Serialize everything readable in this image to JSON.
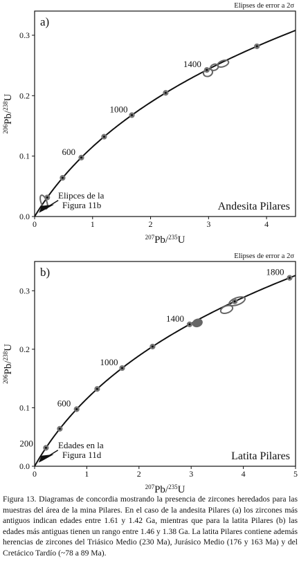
{
  "chart_data": [
    {
      "type": "scatter",
      "panel_label": "a)",
      "note": "Elipses de error a 2σ",
      "sample": "Andesita Pilares",
      "xlabel": {
        "m1": "207",
        "b1": "Pb/",
        "m2": "235",
        "b2": "U"
      },
      "ylabel": {
        "m1": "206",
        "b1": "Pb/",
        "m2": "238",
        "b2": "U"
      },
      "xlim": [
        0,
        4.5
      ],
      "ylim": [
        0,
        0.34
      ],
      "xticks": [
        0,
        1,
        2,
        3,
        4
      ],
      "yticks": [
        0.0,
        0.1,
        0.2,
        0.3
      ],
      "xtick_labels": [
        "0",
        "1",
        "2",
        "3",
        "4"
      ],
      "ytick_labels": [
        "0.0",
        "0.1",
        "0.2",
        "0.3"
      ],
      "concordia_ages_ma": [
        200,
        400,
        600,
        800,
        1000,
        1200,
        1400,
        1600
      ],
      "age_labels": [
        {
          "age": 600,
          "text": "600"
        },
        {
          "age": 1000,
          "text": "1000"
        },
        {
          "age": 1400,
          "text": "1400"
        }
      ],
      "ellipses": [
        {
          "x": 2.99,
          "y": 0.238,
          "rx": 0.08,
          "ry": 0.006,
          "filled": false
        },
        {
          "x": 3.1,
          "y": 0.247,
          "rx": 0.07,
          "ry": 0.005,
          "filled": false
        },
        {
          "x": 3.25,
          "y": 0.253,
          "rx": 0.1,
          "ry": 0.005,
          "filled": false
        }
      ],
      "near_origin_ellipses": [
        {
          "x": 0.16,
          "y": 0.024,
          "rx": 0.05,
          "ry": 0.012,
          "filled": false
        }
      ],
      "annotation": {
        "line1": "Elipces de la",
        "line2": "Figura 11b",
        "x": 0.05,
        "y": 0.005
      }
    },
    {
      "type": "scatter",
      "panel_label": "b)",
      "note": "Elipses de error a 2σ",
      "sample": "Latita Pilares",
      "xlabel": {
        "m1": "207",
        "b1": "Pb/",
        "m2": "235",
        "b2": "U"
      },
      "ylabel": {
        "m1": "206",
        "b1": "Pb/",
        "m2": "238",
        "b2": "U"
      },
      "xlim": [
        0,
        5
      ],
      "ylim": [
        0,
        0.35
      ],
      "xticks": [
        0,
        1,
        2,
        3,
        4,
        5
      ],
      "yticks": [
        0.0,
        0.1,
        0.2,
        0.3
      ],
      "xtick_labels": [
        "0",
        "1",
        "2",
        "3",
        "4",
        "5"
      ],
      "ytick_labels": [
        "0.0",
        "0.1",
        "0.2",
        "0.3"
      ],
      "concordia_ages_ma": [
        200,
        400,
        600,
        800,
        1000,
        1200,
        1400,
        1600,
        1800
      ],
      "age_labels": [
        {
          "age": 200,
          "text": "200"
        },
        {
          "age": 600,
          "text": "600"
        },
        {
          "age": 1000,
          "text": "1000"
        },
        {
          "age": 1400,
          "text": "1400"
        },
        {
          "age": 1800,
          "text": "1800"
        }
      ],
      "ellipses": [
        {
          "x": 3.12,
          "y": 0.245,
          "rx": 0.09,
          "ry": 0.006,
          "filled": true
        },
        {
          "x": 3.68,
          "y": 0.268,
          "rx": 0.12,
          "ry": 0.006,
          "filled": false
        },
        {
          "x": 3.88,
          "y": 0.282,
          "rx": 0.16,
          "ry": 0.006,
          "filled": false
        }
      ],
      "near_origin_ellipses": [],
      "annotation": {
        "line1": "Edades en la",
        "line2": "Figura 11d",
        "x": 0.05,
        "y": 0.005
      }
    }
  ],
  "caption": "Figura 13. Diagramas de concordia mostrando la presencia de zircones heredados para las muestras del área de la mina Pilares. En el caso de la andesita Pilares (a) los zircones más antiguos indican edades entre 1.61 y 1.42 Ga, mientras que para la latita Pilares (b) las edades más antiguas tienen un rango entre 1.46 y 1.38 Ga. La latita Pilares contiene además herencias de zircones del Triásico Medio (230 Ma), Jurásico Medio (176 y 163 Ma) y del Cretácico Tardío (~78 a 89 Ma)."
}
